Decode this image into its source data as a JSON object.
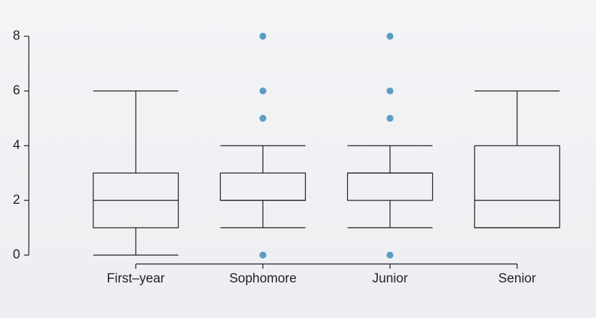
{
  "chart_data": {
    "type": "box",
    "categories": [
      "First–year",
      "Sophomore",
      "Junior",
      "Senior"
    ],
    "boxes": [
      {
        "min": 0,
        "q1": 1,
        "median": 2,
        "q3": 3,
        "max": 6,
        "outliers": []
      },
      {
        "min": 1,
        "q1": 2,
        "median": 2,
        "q3": 3,
        "max": 4,
        "outliers": [
          0,
          5,
          6,
          8
        ]
      },
      {
        "min": 1,
        "q1": 2,
        "median": 3,
        "q3": 3,
        "max": 4,
        "outliers": [
          0,
          5,
          6,
          8
        ]
      },
      {
        "min": 1,
        "q1": 1,
        "median": 2,
        "q3": 4,
        "max": 6,
        "outliers": []
      }
    ],
    "outlier_color": "#5b9cc4",
    "ylim": [
      0,
      8
    ],
    "yticks": [
      0,
      2,
      4,
      6,
      8
    ]
  }
}
